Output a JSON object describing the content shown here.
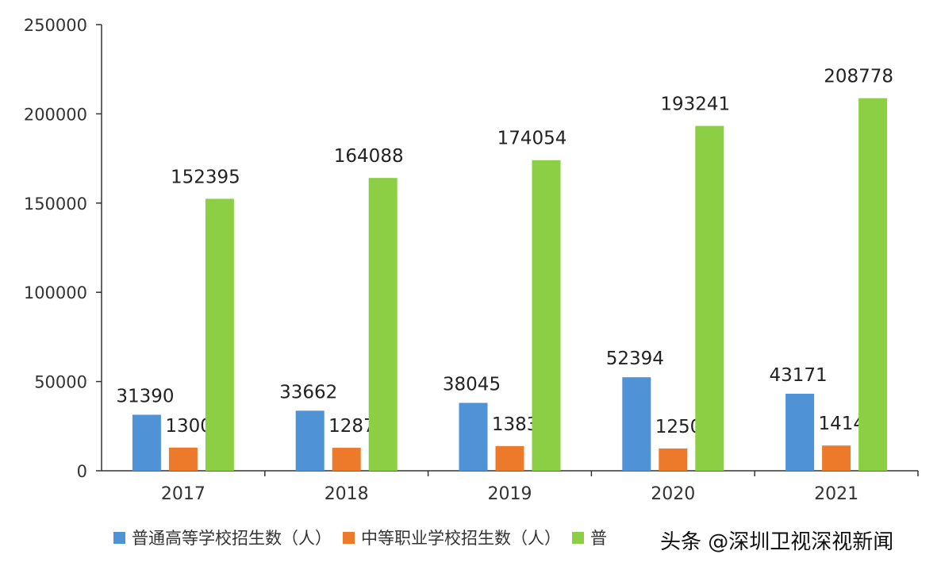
{
  "chart_data": {
    "type": "bar",
    "categories": [
      "2017",
      "2018",
      "2019",
      "2020",
      "2021"
    ],
    "series": [
      {
        "name": "普通高等学校招生数（人）",
        "values": [
          31390,
          33662,
          38045,
          52394,
          43171
        ],
        "color": "#4f92d6"
      },
      {
        "name": "中等职业学校招生数（人）",
        "values": [
          13005,
          12875,
          13835,
          12504,
          14144
        ],
        "color": "#ed7a2a"
      },
      {
        "name": "普",
        "values": [
          152395,
          164088,
          174054,
          193241,
          208778
        ],
        "color": "#8ccf45"
      }
    ],
    "ylim": [
      0,
      250000
    ],
    "yticks": [
      "0",
      "50000",
      "100000",
      "150000",
      "200000",
      "250000"
    ],
    "title": "",
    "xlabel": "",
    "ylabel": "",
    "legend_position": "bottom",
    "grid": false
  },
  "watermark": "头条 @深圳卫视深视新闻"
}
